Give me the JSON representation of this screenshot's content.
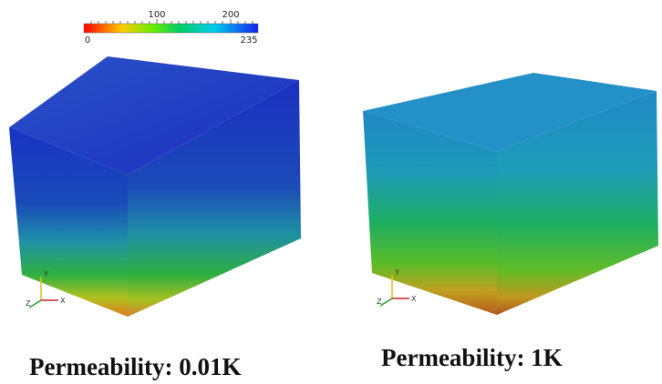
{
  "colorbar": {
    "top_labels": [
      "100",
      "200"
    ],
    "min_label": "0",
    "max_label": "235"
  },
  "panels": [
    {
      "caption": "Permeability: 0.01K",
      "axes": {
        "y": "Y",
        "z": "Z",
        "x": "X"
      }
    },
    {
      "caption": "Permeability: 1K",
      "axes": {
        "y": "Y",
        "z": "Z",
        "x": "X"
      }
    }
  ]
}
